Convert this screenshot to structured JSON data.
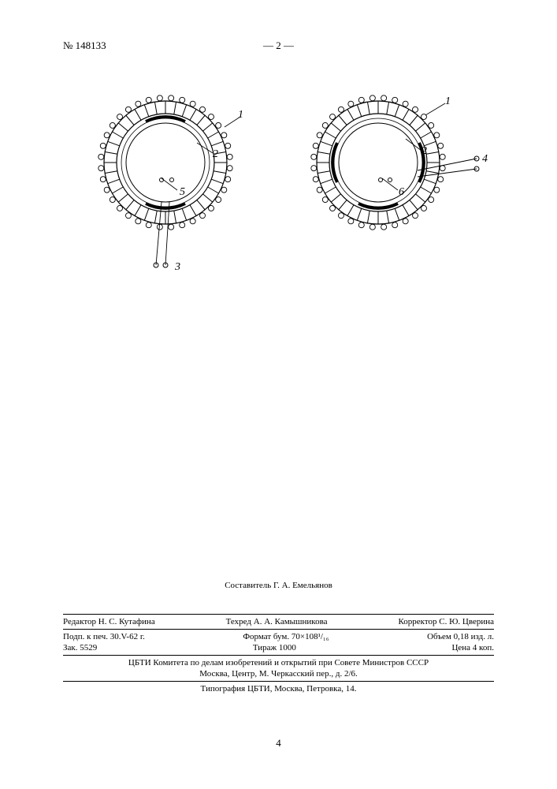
{
  "header": {
    "doc_number": "№ 148133",
    "page_indicator": "— 2 —"
  },
  "figures": {
    "left": {
      "labels": {
        "l1": "1",
        "l2": "2",
        "l5": "5",
        "l3": "3"
      }
    },
    "right": {
      "labels": {
        "l1": "1",
        "l2": "2",
        "l6": "6",
        "l4": "4"
      }
    }
  },
  "footer": {
    "compiler": "Составитель Г. А. Емельянов",
    "editors_row": {
      "editor": "Редактор Н. С. Кутафина",
      "tehred": "Техред А. А. Камышникова",
      "corrector": "Корректор С. Ю. Цверина"
    },
    "row2": {
      "a": "Подп. к печ. 30.V-62 г.",
      "b": "Формат бум. 70×108¹/₁₆",
      "c": "Объем 0,18 изд. л."
    },
    "row3": {
      "a": "Зак. 5529",
      "b": "Тираж 1000",
      "c": "Цена 4 коп."
    },
    "org1": "ЦБТИ Комитета по делам изобретений и открытий при Совете Министров СССР",
    "org2": "Москва, Центр, М. Черкасский пер., д. 2/6.",
    "typo": "Типография ЦБТИ, Москва, Петровка, 14."
  },
  "bottom_page": "4"
}
